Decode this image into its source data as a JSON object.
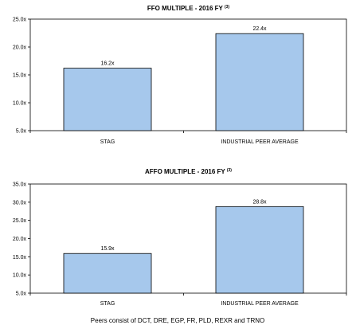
{
  "chart_data": [
    {
      "type": "bar",
      "title": "FFO MULTIPLE - 2016 FY",
      "title_note": "(3)",
      "categories": [
        "STAG",
        "INDUSTRIAL PEER AVERAGE"
      ],
      "values": [
        16.2,
        22.4
      ],
      "data_labels": [
        "16.2x",
        "22.4x"
      ],
      "ylim": [
        5.0,
        25.0
      ],
      "yticks": [
        5.0,
        10.0,
        15.0,
        20.0,
        25.0
      ],
      "ytick_labels": [
        "5.0x",
        "10.0x",
        "15.0x",
        "20.0x",
        "25.0x"
      ],
      "bar_color": "#a6c8ec",
      "bar_edge_color": "#000000",
      "grid": false,
      "legend": "none"
    },
    {
      "type": "bar",
      "title": "AFFO MULTIPLE - 2016 FY",
      "title_note": "(3)",
      "categories": [
        "STAG",
        "INDUSTRIAL PEER AVERAGE"
      ],
      "values": [
        15.9,
        28.8
      ],
      "data_labels": [
        "15.9x",
        "28.8x"
      ],
      "ylim": [
        5.0,
        35.0
      ],
      "yticks": [
        5.0,
        10.0,
        15.0,
        20.0,
        25.0,
        30.0,
        35.0
      ],
      "ytick_labels": [
        "5.0x",
        "10.0x",
        "15.0x",
        "20.0x",
        "25.0x",
        "30.0x",
        "35.0x"
      ],
      "bar_color": "#a6c8ec",
      "bar_edge_color": "#000000",
      "grid": false,
      "legend": "none"
    }
  ],
  "footnote": "Peers consist of DCT, DRE, EGP, FR, PLD, REXR and TRNO"
}
